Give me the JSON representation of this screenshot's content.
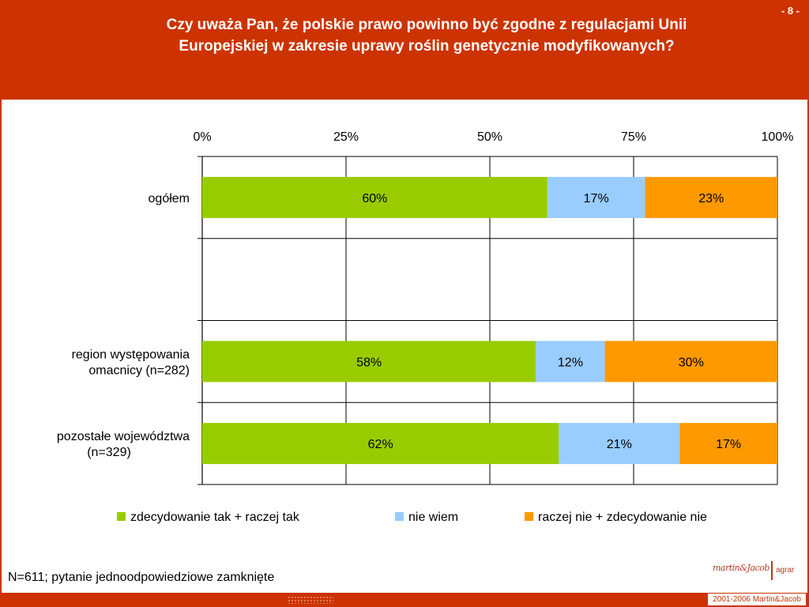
{
  "header": {
    "page_number": "- 8 -",
    "title": "Czy uważa Pan, że polskie prawo powinno być zgodne z regulacjami Unii Europejskiej w zakresie uprawy roślin genetycznie modyfikowanych?"
  },
  "colors": {
    "background": "#cc3300",
    "series": [
      "#99cc00",
      "#99ccff",
      "#ff9900"
    ]
  },
  "chart_data": {
    "type": "bar",
    "orientation": "horizontal",
    "stacked": true,
    "x_ticks": [
      "0%",
      "25%",
      "50%",
      "75%",
      "100%"
    ],
    "xlim": [
      0,
      100
    ],
    "categories": [
      "ogółem",
      "",
      "region występowania omacnicy (n=282)",
      "pozostałe województwa (n=329)"
    ],
    "category_lines": [
      [
        "ogółem"
      ],
      [],
      [
        "region występowania",
        "omacnicy (n=282)"
      ],
      [
        "pozostałe województwa",
        "(n=329)"
      ]
    ],
    "series": [
      {
        "name": "zdecydowanie tak + raczej tak",
        "values": [
          60,
          null,
          58,
          62
        ],
        "labels": [
          "60%",
          "",
          "58%",
          "62%"
        ]
      },
      {
        "name": "nie wiem",
        "values": [
          17,
          null,
          12,
          21
        ],
        "labels": [
          "17%",
          "",
          "12%",
          "21%"
        ]
      },
      {
        "name": "raczej nie + zdecydowanie nie",
        "values": [
          23,
          null,
          30,
          17
        ],
        "labels": [
          "23%",
          "",
          "30%",
          "17%"
        ]
      }
    ],
    "grid": true,
    "legend_position": "bottom"
  },
  "footnote": "N=611; pytanie jednoodpowiedziowe zamknięte",
  "logo": {
    "script": "martin&Jacob",
    "suffix": "agrar"
  },
  "footer": {
    "copyright": "2001-2006 Martin&Jacob"
  }
}
